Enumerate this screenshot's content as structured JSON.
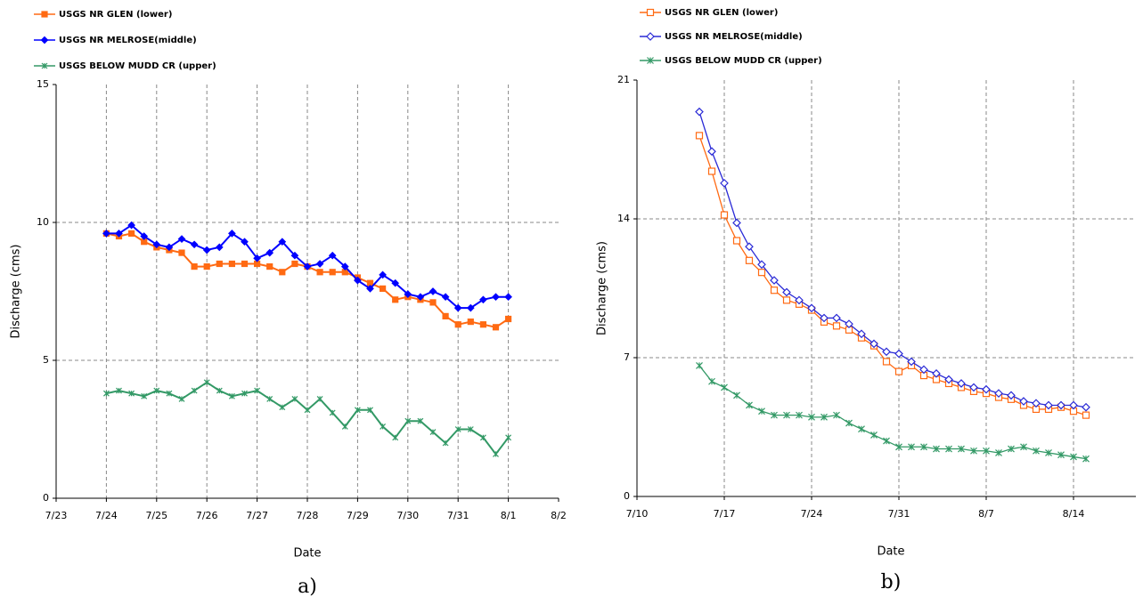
{
  "chart_data": [
    {
      "type": "line",
      "caption": "a)",
      "xlabel": "Date",
      "ylabel": "Discharge (cms)",
      "xlim": [
        23,
        33
      ],
      "ylim": [
        0,
        15
      ],
      "grid": true,
      "xticks": [
        {
          "value": 23,
          "label": "7/23"
        },
        {
          "value": 24,
          "label": "7/24"
        },
        {
          "value": 25,
          "label": "7/25"
        },
        {
          "value": 26,
          "label": "7/26"
        },
        {
          "value": 27,
          "label": "7/27"
        },
        {
          "value": 28,
          "label": "7/28"
        },
        {
          "value": 29,
          "label": "7/29"
        },
        {
          "value": 30,
          "label": "7/30"
        },
        {
          "value": 31,
          "label": "7/31"
        },
        {
          "value": 32,
          "label": "8/1"
        },
        {
          "value": 33,
          "label": "8/2"
        }
      ],
      "yticks": [
        0,
        5,
        10,
        15
      ],
      "x": [
        24,
        24.25,
        24.5,
        24.75,
        25,
        25.25,
        25.5,
        25.75,
        26,
        26.25,
        26.5,
        26.75,
        27,
        27.25,
        27.5,
        27.75,
        28,
        28.25,
        28.5,
        28.75,
        29,
        29.25,
        29.5,
        29.75,
        30,
        30.25,
        30.5,
        30.75,
        31,
        31.25,
        31.5,
        31.75,
        32
      ],
      "series": [
        {
          "name": "USGS NR GLEN (lower)",
          "color": "#ff6a13",
          "marker": "square",
          "values": [
            9.6,
            9.5,
            9.6,
            9.3,
            9.1,
            9.0,
            8.9,
            8.4,
            8.4,
            8.5,
            8.5,
            8.5,
            8.5,
            8.4,
            8.2,
            8.5,
            8.4,
            8.2,
            8.2,
            8.2,
            8.0,
            7.8,
            7.6,
            7.2,
            7.3,
            7.2,
            7.1,
            6.6,
            6.3,
            6.4,
            6.3,
            6.2,
            6.5
          ]
        },
        {
          "name": "USGS NR MELROSE(middle)",
          "color": "#0000ff",
          "marker": "diamond",
          "values": [
            9.6,
            9.6,
            9.9,
            9.5,
            9.2,
            9.1,
            9.4,
            9.2,
            9.0,
            9.1,
            9.6,
            9.3,
            8.7,
            8.9,
            9.3,
            8.8,
            8.4,
            8.5,
            8.8,
            8.4,
            7.9,
            7.6,
            8.1,
            7.8,
            7.4,
            7.3,
            7.5,
            7.3,
            6.9,
            6.9,
            7.2,
            7.3,
            7.3
          ]
        },
        {
          "name": "USGS BELOW MUDD CR (upper)",
          "color": "#339966",
          "marker": "x",
          "values": [
            3.8,
            3.9,
            3.8,
            3.7,
            3.9,
            3.8,
            3.6,
            3.9,
            4.2,
            3.9,
            3.7,
            3.8,
            3.9,
            3.6,
            3.3,
            3.6,
            3.2,
            3.6,
            3.1,
            2.6,
            3.2,
            3.2,
            2.6,
            2.2,
            2.8,
            2.8,
            2.4,
            2.0,
            2.5,
            2.5,
            2.2,
            1.6,
            2.2
          ]
        }
      ]
    },
    {
      "type": "line",
      "caption": "b)",
      "xlabel": "Date",
      "ylabel": "Discharge (cms)",
      "xlim": [
        10,
        50
      ],
      "ylim": [
        0,
        21
      ],
      "grid": true,
      "xticks": [
        {
          "value": 10,
          "label": "7/10"
        },
        {
          "value": 17,
          "label": "7/17"
        },
        {
          "value": 24,
          "label": "7/24"
        },
        {
          "value": 31,
          "label": "7/31"
        },
        {
          "value": 38,
          "label": "8/7"
        },
        {
          "value": 45,
          "label": "8/14"
        }
      ],
      "yticks": [
        0,
        7,
        14,
        21
      ],
      "x": [
        15,
        16,
        17,
        18,
        19,
        20,
        21,
        22,
        23,
        24,
        25,
        26,
        27,
        28,
        29,
        30,
        31,
        32,
        33,
        34,
        35,
        36,
        37,
        38,
        39,
        40,
        41,
        42,
        43,
        44,
        45,
        46
      ],
      "series": [
        {
          "name": "USGS NR GLEN (lower)",
          "color": "#ff6a13",
          "marker": "square",
          "values": [
            18.2,
            16.4,
            14.2,
            12.9,
            11.9,
            11.3,
            10.4,
            9.9,
            9.7,
            9.4,
            8.8,
            8.6,
            8.4,
            8.0,
            7.6,
            6.8,
            6.3,
            6.6,
            6.1,
            5.9,
            5.7,
            5.5,
            5.3,
            5.2,
            5.0,
            4.9,
            4.6,
            4.4,
            4.4,
            4.5,
            4.3,
            4.1
          ]
        },
        {
          "name": "USGS NR MELROSE(middle)",
          "color": "#2b2bd6",
          "marker": "diamond",
          "values": [
            19.4,
            17.4,
            15.8,
            13.8,
            12.6,
            11.7,
            10.9,
            10.3,
            9.9,
            9.5,
            9.0,
            9.0,
            8.7,
            8.2,
            7.7,
            7.3,
            7.2,
            6.8,
            6.4,
            6.2,
            5.9,
            5.7,
            5.5,
            5.4,
            5.2,
            5.1,
            4.8,
            4.7,
            4.6,
            4.6,
            4.6,
            4.5
          ]
        },
        {
          "name": "USGS BELOW MUDD CR (upper)",
          "color": "#339966",
          "marker": "x",
          "values": [
            6.6,
            5.8,
            5.5,
            5.1,
            4.6,
            4.3,
            4.1,
            4.1,
            4.1,
            4.0,
            4.0,
            4.1,
            3.7,
            3.4,
            3.1,
            2.8,
            2.5,
            2.5,
            2.5,
            2.4,
            2.4,
            2.4,
            2.3,
            2.3,
            2.2,
            2.4,
            2.5,
            2.3,
            2.2,
            2.1,
            2.0,
            1.9
          ]
        }
      ]
    }
  ]
}
